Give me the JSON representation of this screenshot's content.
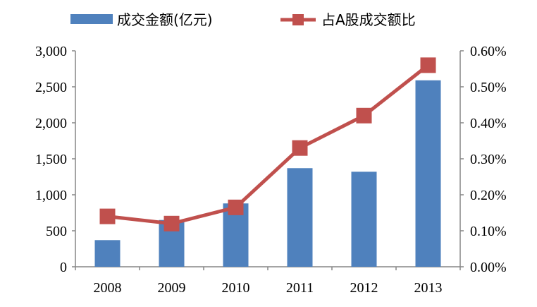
{
  "chart_data": {
    "type": "bar+line",
    "categories": [
      "2008",
      "2009",
      "2010",
      "2011",
      "2012",
      "2013"
    ],
    "series": [
      {
        "name": "成交金额(亿元)",
        "type": "bar",
        "axis": "left",
        "color": "#4F81BD",
        "values": [
          370,
          650,
          880,
          1370,
          1320,
          2590
        ]
      },
      {
        "name": "占A股成交额比",
        "type": "line",
        "axis": "right",
        "color": "#C0504D",
        "values": [
          0.14,
          0.12,
          0.165,
          0.33,
          0.42,
          0.56
        ]
      }
    ],
    "y_left": {
      "range": [
        0,
        3000
      ],
      "ticks": [
        0,
        500,
        1000,
        1500,
        2000,
        2500,
        3000
      ],
      "tick_labels": [
        "0",
        "500",
        "1,000",
        "1,500",
        "2,000",
        "2,500",
        "3,000"
      ]
    },
    "y_right": {
      "range": [
        0,
        0.6
      ],
      "ticks": [
        0,
        0.1,
        0.2,
        0.3,
        0.4,
        0.5,
        0.6
      ],
      "tick_labels": [
        "0.00%",
        "0.10%",
        "0.20%",
        "0.30%",
        "0.40%",
        "0.50%",
        "0.60%"
      ]
    },
    "legend": {
      "position": "top",
      "items": [
        "成交金额(亿元)",
        "占A股成交额比"
      ]
    },
    "grid": false
  }
}
